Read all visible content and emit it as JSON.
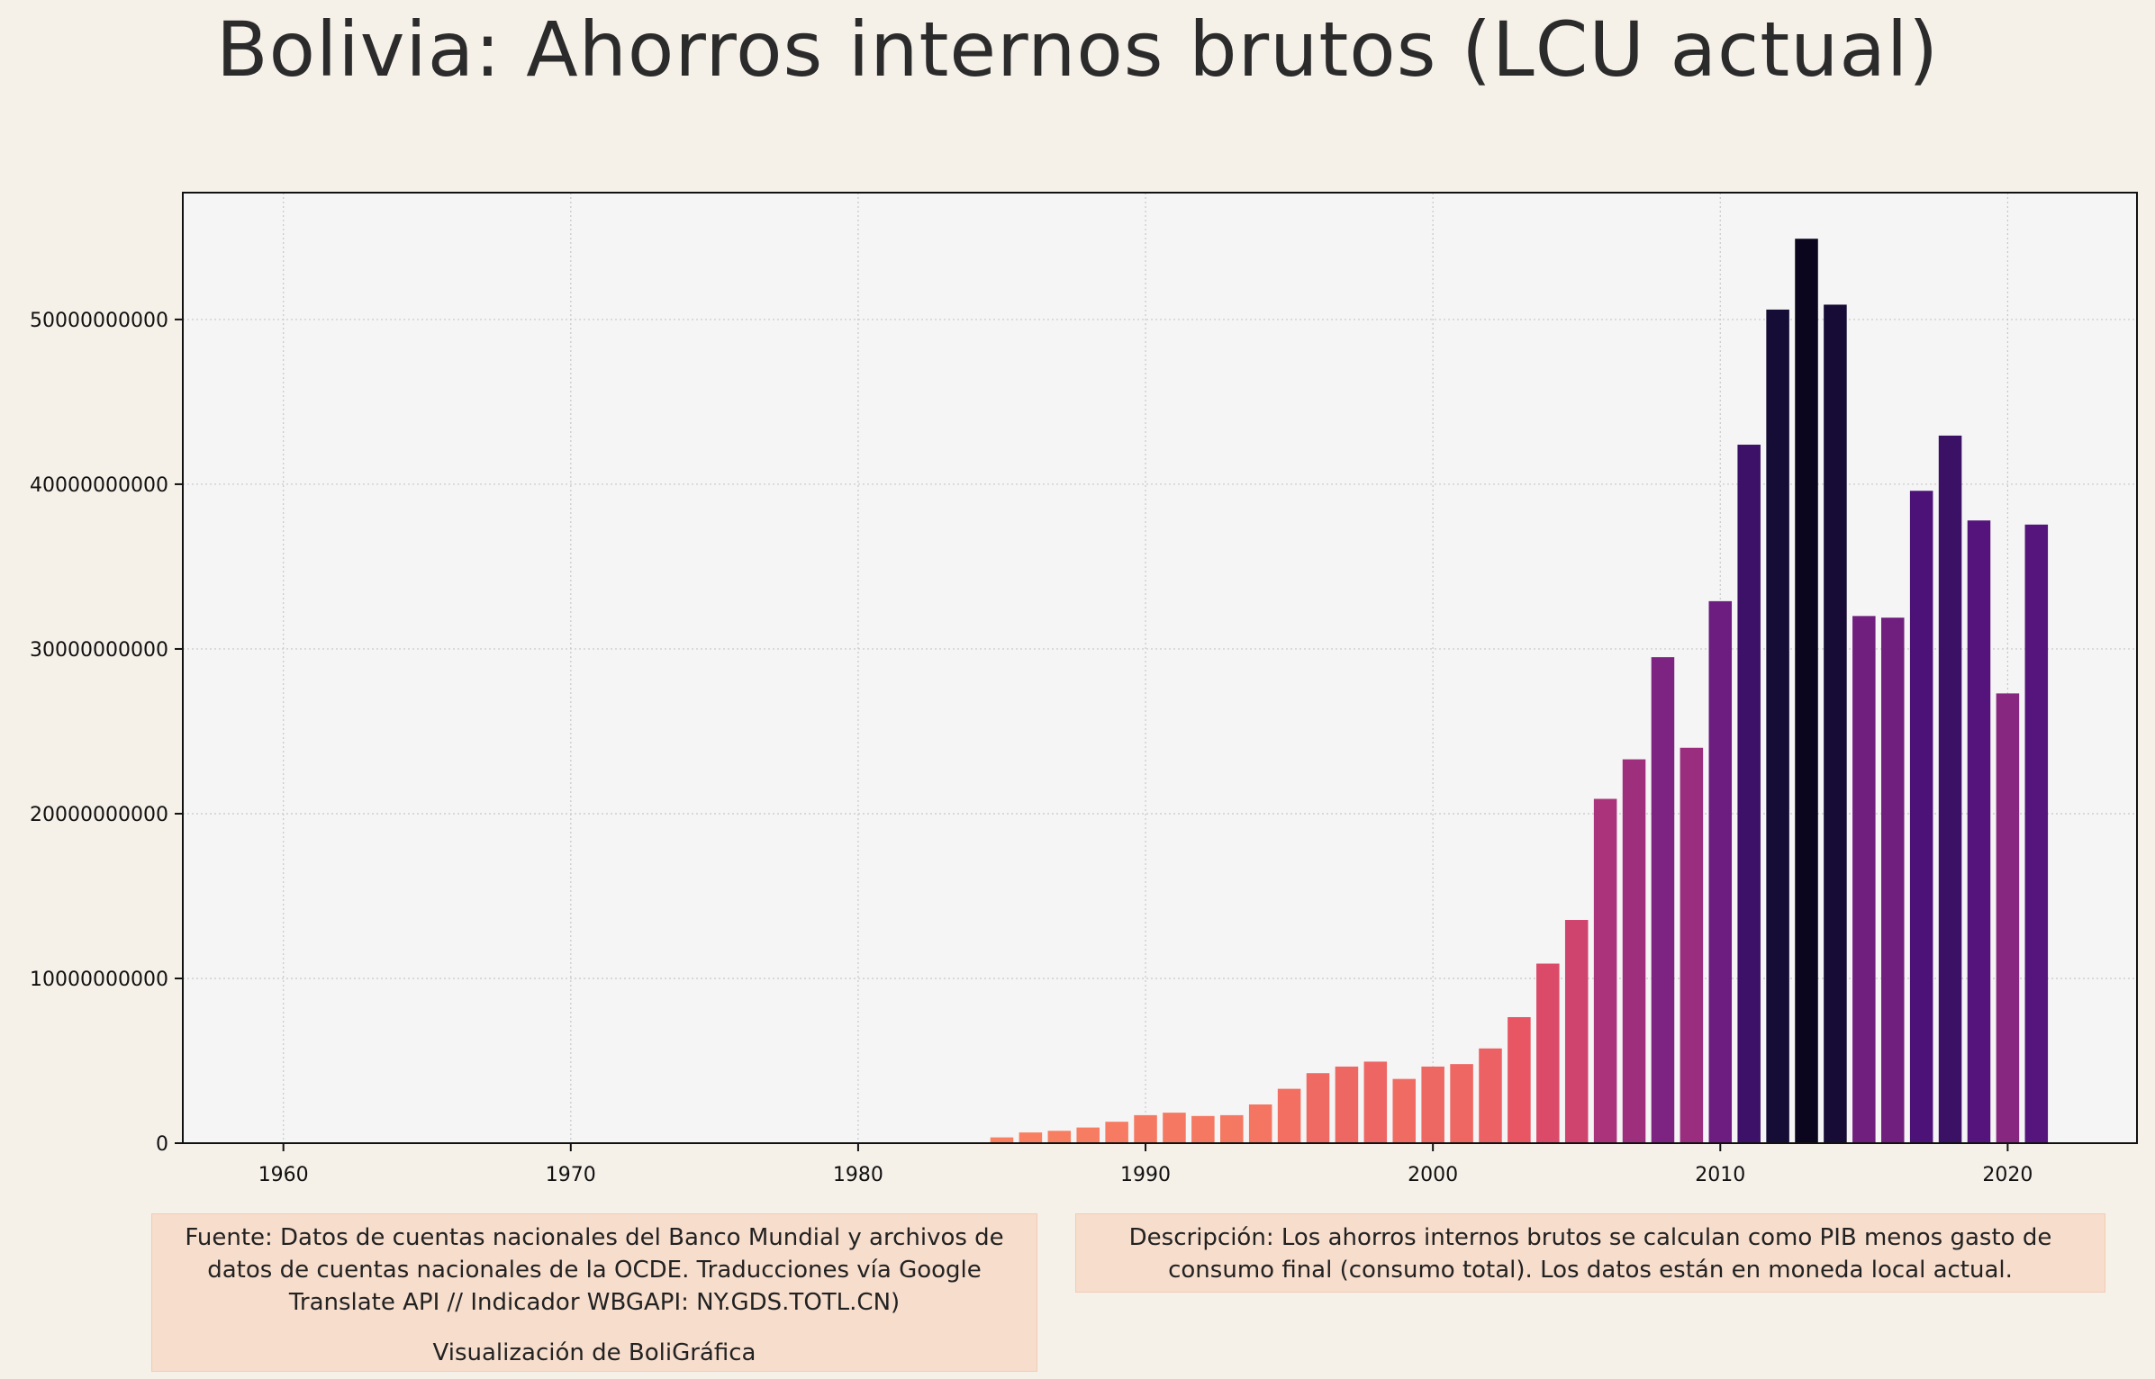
{
  "title": "Bolivia:  Ahorros internos brutos (LCU actual)",
  "notes": {
    "source": "Fuente: Datos de cuentas nacionales del Banco Mundial y archivos de datos de cuentas nacionales de la OCDE. Traducciones vía Google Translate API // Indicador WBGAPI: NY.GDS.TOTL.CN)",
    "credit": "Visualización de BoliGráfica",
    "description": "Descripción: Los ahorros internos brutos se calculan como PIB menos gasto de consumo final (consumo total). Los datos están en moneda local actual."
  },
  "chart_data": {
    "type": "bar",
    "title": "Bolivia:  Ahorros internos brutos (LCU actual)",
    "xlabel": "",
    "ylabel": "",
    "xlim": [
      1956.5,
      2024.5
    ],
    "ylim": [
      0,
      57700000000
    ],
    "grid": true,
    "x_ticks": [
      1960,
      1970,
      1980,
      1990,
      2000,
      2010,
      2020
    ],
    "y_ticks": [
      0,
      10000000000,
      20000000000,
      30000000000,
      40000000000,
      50000000000
    ],
    "y_tick_labels": [
      "0",
      "10000000000",
      "20000000000",
      "30000000000",
      "40000000000",
      "50000000000"
    ],
    "colormap": "magma_r",
    "x": [
      1985,
      1986,
      1987,
      1988,
      1989,
      1990,
      1991,
      1992,
      1993,
      1994,
      1995,
      1996,
      1997,
      1998,
      1999,
      2000,
      2001,
      2002,
      2003,
      2004,
      2005,
      2006,
      2007,
      2008,
      2009,
      2010,
      2011,
      2012,
      2013,
      2014,
      2015,
      2016,
      2017,
      2018,
      2019,
      2020,
      2021
    ],
    "values": [
      350000000,
      650000000,
      750000000,
      950000000,
      1300000000,
      1700000000,
      1850000000,
      1650000000,
      1700000000,
      2350000000,
      3300000000,
      4250000000,
      4650000000,
      4950000000,
      3900000000,
      4650000000,
      4800000000,
      5750000000,
      7650000000,
      10900000000,
      13550000000,
      20900000000,
      23300000000,
      29500000000,
      24000000000,
      32900000000,
      42400000000,
      50600000000,
      54900000000,
      50900000000,
      32000000000,
      31900000000,
      39600000000,
      42950000000,
      37800000000,
      27300000000,
      37550000000
    ]
  }
}
